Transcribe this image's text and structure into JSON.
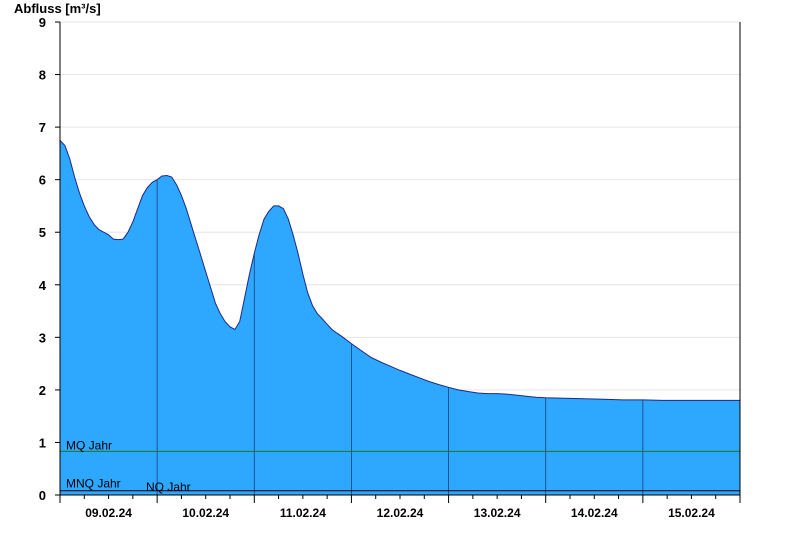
{
  "chart_data": {
    "type": "area",
    "title": "Abfluss [m³/s]",
    "xlabel": "",
    "ylabel": "Abfluss [m³/s]",
    "ylim": [
      0,
      9
    ],
    "yticks": [
      "0",
      "1",
      "2",
      "3",
      "4",
      "5",
      "6",
      "7",
      "8",
      "9"
    ],
    "x_date_labels": [
      "09.02.24",
      "10.02.24",
      "11.02.24",
      "12.02.24",
      "13.02.24",
      "14.02.24",
      "15.02.24"
    ],
    "xlim_days": [
      0,
      7
    ],
    "grid": true,
    "colors": {
      "area": "#2ea7ff",
      "outline": "#1b2a8a",
      "mq_line": "#1a7a1a",
      "nq_line": "#000000"
    },
    "series": [
      {
        "values_x_days": [
          0.0,
          0.05,
          0.1,
          0.15,
          0.2,
          0.25,
          0.3,
          0.35,
          0.4,
          0.45,
          0.5,
          0.55,
          0.6,
          0.65,
          0.7,
          0.75,
          0.8,
          0.85,
          0.9,
          0.95,
          1.0,
          1.05,
          1.1,
          1.15,
          1.2,
          1.25,
          1.3,
          1.35,
          1.4,
          1.45,
          1.5,
          1.55,
          1.6,
          1.65,
          1.7,
          1.75,
          1.8,
          1.85,
          1.9,
          1.95,
          2.0,
          2.05,
          2.1,
          2.15,
          2.2,
          2.25,
          2.3,
          2.35,
          2.4,
          2.45,
          2.5,
          2.55,
          2.6,
          2.65,
          2.7,
          2.75,
          2.8,
          2.85,
          2.9,
          2.95,
          3.0,
          3.1,
          3.2,
          3.3,
          3.4,
          3.5,
          3.6,
          3.7,
          3.8,
          3.9,
          4.0,
          4.1,
          4.2,
          4.3,
          4.4,
          4.5,
          4.6,
          4.7,
          4.8,
          4.9,
          5.0,
          5.2,
          5.4,
          5.6,
          5.8,
          6.0,
          6.2,
          6.4,
          6.6,
          6.8,
          7.0
        ],
        "values_y": [
          6.75,
          6.65,
          6.4,
          6.05,
          5.75,
          5.5,
          5.3,
          5.15,
          5.05,
          5.0,
          4.95,
          4.87,
          4.86,
          4.87,
          5.0,
          5.2,
          5.45,
          5.7,
          5.85,
          5.95,
          6.0,
          6.07,
          6.08,
          6.05,
          5.9,
          5.7,
          5.45,
          5.15,
          4.85,
          4.55,
          4.25,
          3.95,
          3.65,
          3.45,
          3.3,
          3.2,
          3.15,
          3.3,
          3.75,
          4.2,
          4.6,
          4.95,
          5.25,
          5.4,
          5.5,
          5.5,
          5.45,
          5.25,
          4.95,
          4.6,
          4.2,
          3.85,
          3.6,
          3.45,
          3.35,
          3.25,
          3.15,
          3.08,
          3.02,
          2.95,
          2.88,
          2.75,
          2.62,
          2.53,
          2.45,
          2.37,
          2.3,
          2.23,
          2.16,
          2.1,
          2.05,
          2.0,
          1.97,
          1.94,
          1.93,
          1.93,
          1.92,
          1.9,
          1.88,
          1.86,
          1.85,
          1.84,
          1.83,
          1.82,
          1.81,
          1.81,
          1.8,
          1.8,
          1.8,
          1.8,
          1.8
        ]
      }
    ],
    "reference_lines": [
      {
        "label": "MQ Jahr",
        "value": 0.83
      },
      {
        "label": "MNQ Jahr",
        "value": 0.09
      },
      {
        "label": "NQ Jahr",
        "value": 0.09
      }
    ]
  }
}
